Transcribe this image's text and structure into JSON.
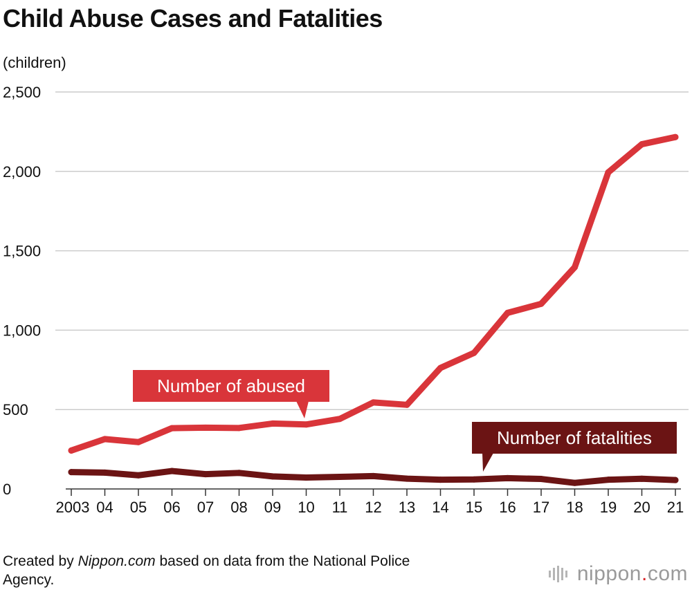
{
  "title": "Child Abuse Cases and Fatalities",
  "unit_label": "(children)",
  "footer": {
    "prefix": "Created by ",
    "source_italic": "Nippon.com",
    "suffix": " based on data from the National Police Agency."
  },
  "logo": {
    "name": "nippon",
    "dot": ".",
    "tld": "com",
    "icon": "nippon-logo-bars-icon"
  },
  "colors": {
    "abused": "#d9353a",
    "fatalities": "#6b1414",
    "grid": "#cccccc",
    "logo_dot": "#d9252a"
  },
  "chart_data": {
    "type": "line",
    "title": "Child Abuse Cases and Fatalities",
    "ylabel": "(children)",
    "xlabel": "",
    "ylim": [
      0,
      2500
    ],
    "yticks": [
      0,
      500,
      1000,
      1500,
      2000,
      2500
    ],
    "ytick_labels": [
      "0",
      "500",
      "1,000",
      "1,500",
      "2,000",
      "2,500"
    ],
    "grid": true,
    "categories": [
      "2003",
      "04",
      "05",
      "06",
      "07",
      "08",
      "09",
      "10",
      "11",
      "12",
      "13",
      "14",
      "15",
      "16",
      "17",
      "18",
      "19",
      "20",
      "21"
    ],
    "series": [
      {
        "name": "Number of abused",
        "color": "#d9353a",
        "values": [
          242,
          314,
          295,
          383,
          386,
          384,
          412,
          406,
          441,
          545,
          530,
          762,
          857,
          1109,
          1166,
          1396,
          1994,
          2171,
          2216
        ]
      },
      {
        "name": "Number of fatalities",
        "color": "#6b1414",
        "values": [
          106,
          103,
          86,
          113,
          93,
          101,
          79,
          72,
          76,
          81,
          65,
          58,
          60,
          68,
          63,
          38,
          58,
          64,
          56
        ]
      }
    ]
  }
}
